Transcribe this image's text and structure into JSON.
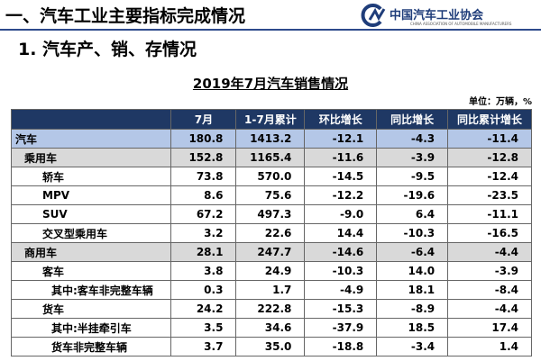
{
  "header": {
    "title": "一、汽车工业主要指标完成情况",
    "logo": "中国汽车工业协会",
    "logo_en": "CHINA ASSOCIATION OF AUTOMOBILE MANUFACTURERS"
  },
  "section_title": "1. 汽车产、销、存情况",
  "table": {
    "title": "2019年7月汽车销售情况",
    "unit": "单位：万辆，%",
    "columns": [
      "7月",
      "1-7月累计",
      "环比增长",
      "同比增长",
      "同比累计增长"
    ],
    "rows": [
      [
        "汽车",
        "180.8",
        "1413.2",
        "-12.1",
        "-4.3",
        "-11.4"
      ],
      [
        "乘用车",
        "152.8",
        "1165.4",
        "-11.6",
        "-3.9",
        "-12.8"
      ],
      [
        "轿车",
        "73.8",
        "570.0",
        "-14.5",
        "-9.5",
        "-12.4"
      ],
      [
        "MPV",
        "8.6",
        "75.6",
        "-12.2",
        "-19.6",
        "-23.5"
      ],
      [
        "SUV",
        "67.2",
        "497.3",
        "-9.0",
        "6.4",
        "-11.1"
      ],
      [
        "交叉型乘用车",
        "3.2",
        "22.6",
        "14.4",
        "-10.3",
        "-16.5"
      ],
      [
        "商用车",
        "28.1",
        "247.7",
        "-14.6",
        "-6.4",
        "-4.4"
      ],
      [
        "客车",
        "3.8",
        "24.9",
        "-10.3",
        "14.0",
        "-3.9"
      ],
      [
        "其中:客车非完整车辆",
        "0.3",
        "1.7",
        "-4.9",
        "18.1",
        "-8.4"
      ],
      [
        "货车",
        "24.2",
        "222.8",
        "-15.3",
        "-8.9",
        "-4.4"
      ],
      [
        "其中:半挂牵引车",
        "3.5",
        "34.6",
        "-37.9",
        "18.5",
        "17.4"
      ],
      [
        "货车非完整车辆",
        "3.7",
        "35.0",
        "-18.8",
        "-3.4",
        "1.4"
      ]
    ]
  }
}
